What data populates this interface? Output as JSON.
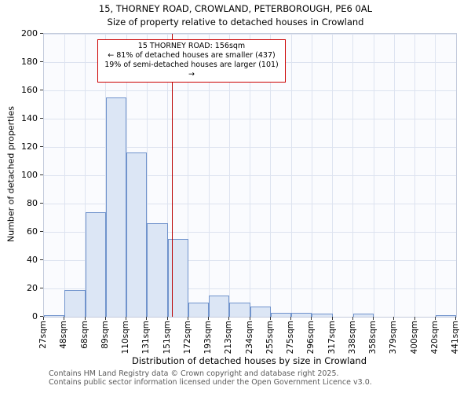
{
  "title": {
    "line1": "15, THORNEY ROAD, CROWLAND, PETERBOROUGH, PE6 0AL",
    "line2": "Size of property relative to detached houses in Crowland"
  },
  "chart_data": {
    "type": "bar",
    "title": "15, THORNEY ROAD, CROWLAND, PETERBOROUGH, PE6 0AL — Size of property relative to detached houses in Crowland",
    "xlabel": "Distribution of detached houses by size in Crowland",
    "ylabel": "Number of detached properties",
    "ylim": [
      0,
      200
    ],
    "y_ticks": [
      0,
      20,
      40,
      60,
      80,
      100,
      120,
      140,
      160,
      180,
      200
    ],
    "bin_edges": [
      27,
      48,
      68,
      89,
      110,
      131,
      151,
      172,
      193,
      213,
      234,
      255,
      275,
      296,
      317,
      338,
      358,
      379,
      400,
      420,
      441
    ],
    "x_tick_labels": [
      "27sqm",
      "48sqm",
      "68sqm",
      "89sqm",
      "110sqm",
      "131sqm",
      "151sqm",
      "172sqm",
      "193sqm",
      "213sqm",
      "234sqm",
      "255sqm",
      "275sqm",
      "296sqm",
      "317sqm",
      "338sqm",
      "358sqm",
      "379sqm",
      "400sqm",
      "420sqm",
      "441sqm"
    ],
    "values": [
      1,
      19,
      74,
      155,
      116,
      66,
      55,
      10,
      15,
      10,
      7,
      3,
      3,
      2,
      0,
      2,
      0,
      0,
      0,
      1
    ],
    "grid": true,
    "marker": {
      "value_sqm": 156,
      "color": "#bb0000"
    },
    "annotation": {
      "line1": "15 THORNEY ROAD: 156sqm",
      "line2": "← 81% of detached houses are smaller (437)",
      "line3": "19% of semi-detached houses are larger (101) →"
    },
    "colors": {
      "bar_fill": "#dce6f5",
      "bar_edge": "#7093cc",
      "marker_line": "#bb0000",
      "annotation_border": "#cc0000"
    }
  },
  "footer": {
    "line1": "Contains HM Land Registry data © Crown copyright and database right 2025.",
    "line2": "Contains public sector information licensed under the Open Government Licence v3.0."
  }
}
